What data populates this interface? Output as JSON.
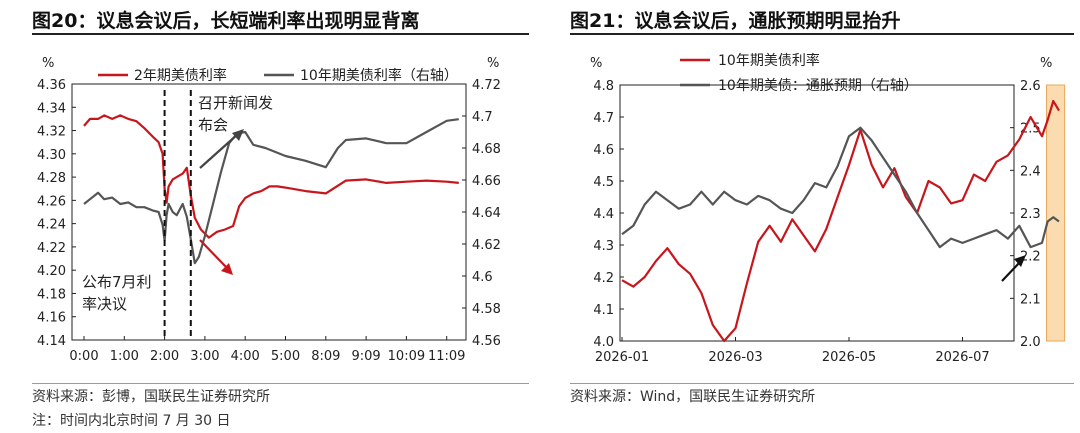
{
  "left_chart": {
    "title": "图20：议息会议后，长短端利率出现明显背离",
    "source": "资料来源：彭博，国联民生证券研究所",
    "note": "注：时间内北京时间 7 月 30 日",
    "left_unit": "%",
    "right_unit": "%",
    "annotations": {
      "release": "召开新闻发布会",
      "release_l1": "召开新闻发",
      "release_l2": "布会",
      "decision_l1": "公布7月利",
      "decision_l2": "率决议"
    },
    "colors": {
      "red": "#c8161d",
      "gray": "#555555"
    }
  },
  "right_chart": {
    "title": "图21：议息会议后，通胀预期明显抬升",
    "source": "资料来源：Wind，国联民生证券研究所",
    "left_unit": "%",
    "right_unit": "%",
    "colors": {
      "red": "#c8161d",
      "gray": "#555555",
      "highlight": "#fbdcb0"
    }
  },
  "chart_data": [
    {
      "type": "line",
      "x_ticks": [
        "0:00",
        "1:00",
        "2:00",
        "3:00",
        "4:00",
        "5:00",
        "8:09",
        "9:09",
        "10:09",
        "11:09"
      ],
      "ylim_left": [
        4.14,
        4.36
      ],
      "yticks_left": [
        "4.36",
        "4.34",
        "4.32",
        "4.30",
        "4.28",
        "4.26",
        "4.24",
        "4.22",
        "4.20",
        "4.18",
        "4.16",
        "4.14"
      ],
      "ylim_right": [
        4.56,
        4.72
      ],
      "yticks_right": [
        "4.72",
        "4.7",
        "4.68",
        "4.66",
        "4.64",
        "4.62",
        "4.6",
        "4.58",
        "4.56"
      ],
      "vlines_at_tick": [
        2.0,
        2.65
      ],
      "series": [
        {
          "name": "2年期美债利率",
          "axis": "left",
          "x": [
            0,
            0.15,
            0.35,
            0.5,
            0.7,
            0.9,
            1.1,
            1.3,
            1.5,
            1.7,
            1.85,
            1.95,
            2.0,
            2.05,
            2.1,
            2.2,
            2.3,
            2.45,
            2.55,
            2.65,
            2.75,
            2.9,
            3.1,
            3.3,
            3.5,
            3.7,
            3.85,
            4.0,
            4.2,
            4.4,
            4.6,
            4.8,
            5.0,
            5.5,
            6.0,
            6.5,
            7.0,
            7.5,
            8.0,
            8.5,
            9.0,
            9.3
          ],
          "y": [
            4.324,
            4.33,
            4.33,
            4.333,
            4.33,
            4.333,
            4.33,
            4.328,
            4.322,
            4.315,
            4.31,
            4.3,
            4.27,
            4.258,
            4.272,
            4.278,
            4.28,
            4.283,
            4.288,
            4.264,
            4.245,
            4.235,
            4.228,
            4.233,
            4.235,
            4.238,
            4.255,
            4.262,
            4.266,
            4.268,
            4.272,
            4.272,
            4.271,
            4.268,
            4.266,
            4.277,
            4.278,
            4.275,
            4.276,
            4.277,
            4.276,
            4.275
          ]
        },
        {
          "name": "10年期美债利率（右轴）",
          "axis": "right",
          "x": [
            0,
            0.15,
            0.35,
            0.5,
            0.7,
            0.9,
            1.1,
            1.3,
            1.5,
            1.7,
            1.85,
            1.95,
            2.0,
            2.05,
            2.1,
            2.2,
            2.3,
            2.45,
            2.55,
            2.65,
            2.75,
            2.85,
            3.0,
            3.2,
            3.4,
            3.6,
            3.8,
            4.0,
            4.2,
            4.5,
            5.0,
            5.5,
            6.0,
            6.3,
            6.5,
            7.0,
            7.5,
            8.0,
            8.5,
            9.0,
            9.3
          ],
          "y": [
            4.645,
            4.648,
            4.652,
            4.648,
            4.649,
            4.645,
            4.646,
            4.643,
            4.643,
            4.641,
            4.64,
            4.632,
            4.622,
            4.638,
            4.645,
            4.64,
            4.638,
            4.645,
            4.637,
            4.623,
            4.608,
            4.612,
            4.625,
            4.645,
            4.665,
            4.683,
            4.689,
            4.69,
            4.682,
            4.68,
            4.675,
            4.672,
            4.668,
            4.68,
            4.685,
            4.686,
            4.683,
            4.683,
            4.69,
            4.697,
            4.698
          ]
        }
      ]
    },
    {
      "type": "line",
      "x_ticks": [
        "2026-01",
        "2026-03",
        "2026-05",
        "2026-07"
      ],
      "ylim_left": [
        4.0,
        4.8
      ],
      "yticks_left": [
        "4.8",
        "4.7",
        "4.6",
        "4.5",
        "4.4",
        "4.3",
        "4.2",
        "4.1",
        "4.0"
      ],
      "ylim_right": [
        2.0,
        2.6
      ],
      "yticks_right": [
        "2.6",
        "2.5",
        "2.4",
        "2.3",
        "2.2",
        "2.1",
        "2.0"
      ],
      "series": [
        {
          "name": "10年期美债利率",
          "axis": "left",
          "x": [
            0,
            0.1,
            0.2,
            0.3,
            0.4,
            0.5,
            0.6,
            0.7,
            0.8,
            0.9,
            1.0,
            1.1,
            1.2,
            1.3,
            1.4,
            1.5,
            1.6,
            1.7,
            1.8,
            1.9,
            2.0,
            2.1,
            2.2,
            2.3,
            2.4,
            2.5,
            2.6,
            2.7,
            2.8,
            2.9,
            3.0,
            3.1,
            3.2,
            3.3,
            3.4,
            3.5,
            3.6,
            3.7,
            3.75,
            3.8,
            3.85
          ],
          "y": [
            4.19,
            4.17,
            4.2,
            4.25,
            4.29,
            4.24,
            4.21,
            4.15,
            4.05,
            4.0,
            4.04,
            4.18,
            4.31,
            4.36,
            4.31,
            4.38,
            4.33,
            4.28,
            4.35,
            4.45,
            4.55,
            4.66,
            4.55,
            4.48,
            4.54,
            4.45,
            4.4,
            4.5,
            4.48,
            4.43,
            4.44,
            4.52,
            4.5,
            4.56,
            4.58,
            4.63,
            4.7,
            4.64,
            4.69,
            4.75,
            4.72
          ]
        },
        {
          "name": "10年期美债：通胀预期（右轴）",
          "axis": "right",
          "x": [
            0,
            0.1,
            0.2,
            0.3,
            0.4,
            0.5,
            0.6,
            0.7,
            0.8,
            0.9,
            1.0,
            1.1,
            1.2,
            1.3,
            1.4,
            1.5,
            1.6,
            1.7,
            1.8,
            1.9,
            2.0,
            2.1,
            2.2,
            2.3,
            2.4,
            2.5,
            2.6,
            2.7,
            2.8,
            2.9,
            3.0,
            3.1,
            3.2,
            3.3,
            3.4,
            3.5,
            3.6,
            3.7,
            3.75,
            3.8,
            3.85
          ],
          "y": [
            2.25,
            2.27,
            2.32,
            2.35,
            2.33,
            2.31,
            2.32,
            2.35,
            2.32,
            2.35,
            2.33,
            2.32,
            2.34,
            2.33,
            2.31,
            2.3,
            2.33,
            2.37,
            2.36,
            2.41,
            2.48,
            2.5,
            2.47,
            2.43,
            2.39,
            2.35,
            2.3,
            2.26,
            2.22,
            2.24,
            2.23,
            2.24,
            2.25,
            2.26,
            2.24,
            2.27,
            2.22,
            2.23,
            2.28,
            2.29,
            2.28
          ]
        }
      ]
    }
  ]
}
